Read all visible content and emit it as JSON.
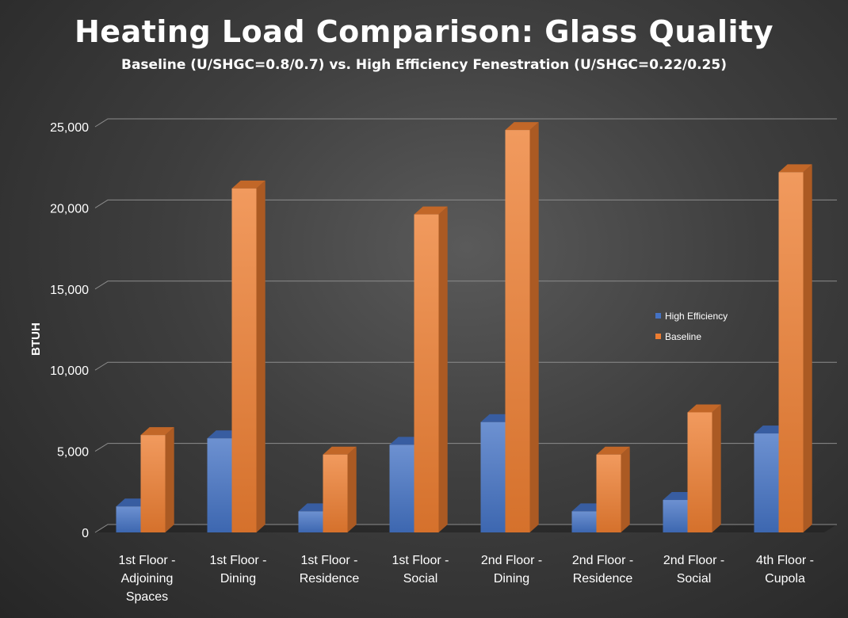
{
  "chart_data": {
    "type": "bar",
    "title": "Heating Load Comparison: Glass Quality",
    "subtitle": "Baseline (U/SHGC=0.8/0.7) vs. High Efficiency Fenestration (U/SHGC=0.22/0.25)",
    "xlabel": "",
    "ylabel": "BTUH",
    "ylim": [
      0,
      25000
    ],
    "yticks": [
      0,
      5000,
      10000,
      15000,
      20000,
      25000
    ],
    "ytick_labels": [
      "0",
      "5,000",
      "10,000",
      "15,000",
      "20,000",
      "25,000"
    ],
    "grid": true,
    "legend_position": "right",
    "categories": [
      [
        "1st Floor -",
        "Adjoining",
        "Spaces"
      ],
      [
        "1st Floor -",
        "Dining"
      ],
      [
        "1st Floor -",
        "Residence"
      ],
      [
        "1st Floor -",
        "Social"
      ],
      [
        "2nd Floor -",
        "Dining"
      ],
      [
        "2nd Floor -",
        "Residence"
      ],
      [
        "2nd Floor -",
        "Social"
      ],
      [
        "4th Floor -",
        "Cupola"
      ]
    ],
    "series": [
      {
        "name": "High Efficiency",
        "color": "#4472c4",
        "values": [
          1600,
          5800,
          1300,
          5400,
          6800,
          1300,
          2000,
          6100
        ]
      },
      {
        "name": "Baseline",
        "color": "#ed7d31",
        "values": [
          6000,
          21200,
          4800,
          19600,
          24800,
          4800,
          7400,
          22200
        ]
      }
    ]
  }
}
